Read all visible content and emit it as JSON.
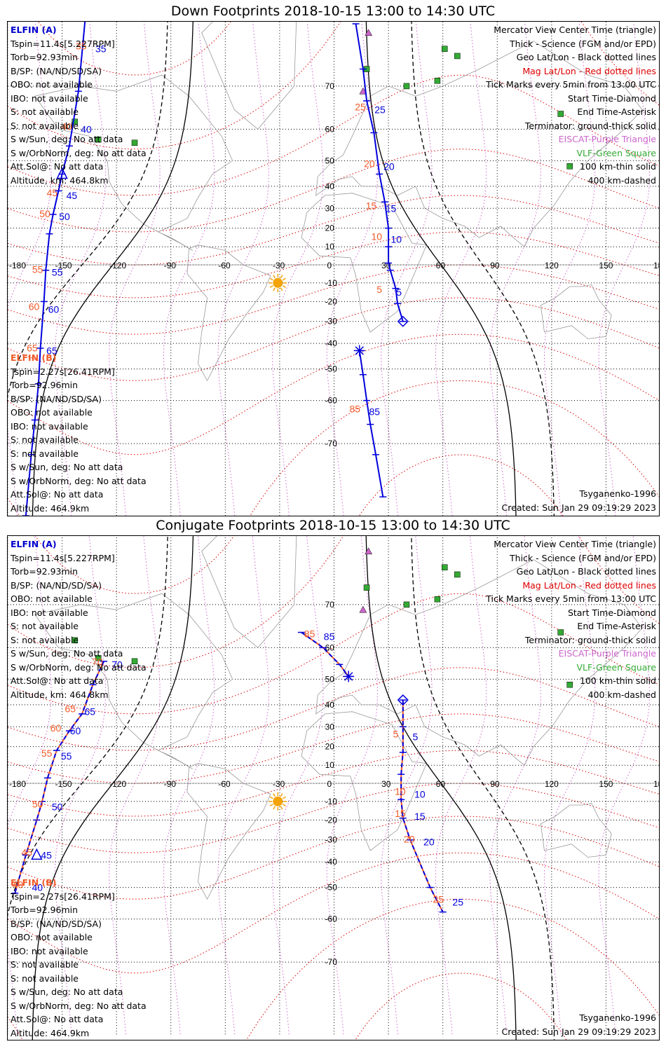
{
  "panels": [
    {
      "title": "Down Footprints 2018-10-15 13:00 to 14:30 UTC",
      "elfin_a": {
        "name": "ELFIN (A)",
        "lines": [
          "Tspin=11.4s[5.227RPM]",
          "Torb=92.93min",
          "B/SP: (NA/ND/SD/SA)",
          "OBO: not available",
          "IBO: not available",
          "S: not available",
          "S: not available",
          "S w/Sun, deg: No att data",
          "S w/OrbNorm, deg: No att data",
          "Att.Sol@: No att data",
          "Altitude, km: 464.8km"
        ]
      },
      "elfin_b": {
        "name": "ELFIN (B)",
        "lines": [
          "Tspin=2.27s[26.41RPM]",
          "Torb=92.96min",
          "B/SP: (NA/ND/SD/SA)",
          "OBO: not available",
          "IBO: not available",
          "S: not available",
          "S: not available",
          "S w/Sun, deg: No att data",
          "S w/OrbNorm, deg: No att data",
          "Att.Sol@: No att data",
          "Altitude: 464.9km"
        ]
      },
      "legend": [
        {
          "text": "Mercator View Center Time (triangle)",
          "color": "#000000"
        },
        {
          "text": "Thick - Science (FGM and/or EPD)",
          "color": "#000000"
        },
        {
          "text": "Geo Lat/Lon - Black dotted lines",
          "color": "#000000"
        },
        {
          "text": "Mag Lat/Lon - Red dotted lines",
          "color": "#dd0000"
        },
        {
          "text": "Tick Marks every 5min from 13:00 UTC",
          "color": "#000000"
        },
        {
          "text": "Start Time-Diamond",
          "color": "#000000"
        },
        {
          "text": "End Time-Asterisk",
          "color": "#000000"
        },
        {
          "text": "Terminator: ground-thick solid",
          "color": "#000000"
        },
        {
          "text": "EISCAT-Purple Triangle",
          "color": "#cc66cc"
        },
        {
          "text": "VLF-Green Square",
          "color": "#33aa33"
        },
        {
          "text": "100 km-thin solid",
          "color": "#000000"
        },
        {
          "text": "400 km-dashed",
          "color": "#000000"
        }
      ],
      "model": "Tsyganenko-1996",
      "created": "Created: Sun Jan 29 09:19:29 2023",
      "lon_labels": [
        "-180",
        "-150",
        "-120",
        "-90",
        "-60",
        "-30",
        "0",
        "30",
        "60",
        "90",
        "120",
        "150",
        "180"
      ],
      "lat_labels": [
        "70",
        "60",
        "50",
        "40",
        "30",
        "20",
        "10",
        "-10",
        "-20",
        "-30",
        "-40",
        "-50",
        "-60",
        "-70"
      ],
      "track_a": {
        "points": [
          [
            -137,
            80
          ],
          [
            -141,
            69
          ],
          [
            -146,
            55
          ],
          [
            -150,
            45
          ],
          [
            -152,
            38
          ],
          [
            -155,
            27
          ],
          [
            -157,
            17
          ],
          [
            -159,
            -3
          ],
          [
            -160,
            -20
          ],
          [
            -162,
            -42
          ],
          [
            -163,
            -55
          ],
          [
            -165,
            -65
          ],
          [
            -167,
            -72
          ],
          [
            -170,
            -80
          ]
        ],
        "labels": [
          {
            "t": "35",
            "lon": -134,
            "lat": 76
          },
          {
            "t": "40",
            "lon": -142,
            "lat": 60
          },
          {
            "t": "45",
            "lon": -150,
            "lat": 36
          },
          {
            "t": "50",
            "lon": -154,
            "lat": 26
          },
          {
            "t": "55",
            "lon": -158,
            "lat": -4
          },
          {
            "t": "60",
            "lon": -160,
            "lat": -24
          },
          {
            "t": "65",
            "lon": -161,
            "lat": -43
          }
        ]
      },
      "track_b": {
        "points": [
          [
            12,
            79
          ],
          [
            16,
            73
          ],
          [
            18,
            67
          ],
          [
            22,
            59
          ],
          [
            25,
            45
          ],
          [
            28,
            33
          ],
          [
            30,
            20
          ],
          [
            30,
            10
          ],
          [
            30,
            1
          ],
          [
            31,
            -3
          ],
          [
            34,
            -13
          ],
          [
            35,
            -21
          ],
          [
            38,
            -30
          ]
        ],
        "labels": [
          {
            "t": "25",
            "lon": 20,
            "lat": 65
          },
          {
            "t": "20",
            "lon": 25,
            "lat": 48
          },
          {
            "t": "15",
            "lon": 26,
            "lat": 30
          },
          {
            "t": "10",
            "lon": 29,
            "lat": 14
          },
          {
            "t": "5",
            "lon": 32,
            "lat": -15
          }
        ]
      },
      "track_c": {
        "points": [
          [
            14,
            -43
          ],
          [
            16,
            -52
          ],
          [
            18,
            -60
          ],
          [
            20,
            -66
          ],
          [
            23,
            -72
          ],
          [
            27,
            -78
          ]
        ],
        "labels": [
          {
            "t": "85",
            "lon": 17,
            "lat": -63
          }
        ]
      },
      "sun": {
        "lon": -31,
        "lat": -10
      }
    },
    {
      "title": "Conjugate Footprints 2018-10-15 13:00 to 14:30 UTC",
      "elfin_a": {
        "name": "ELFIN (A)",
        "lines": [
          "Tspin=11.4s[5.227RPM]",
          "Torb=92.93min",
          "B/SP: (NA/ND/SD/SA)",
          "OBO: not available",
          "IBO: not available",
          "S: not available",
          "S: not available",
          "S w/Sun, deg: No att data",
          "S w/OrbNorm, deg: No att data",
          "Att.Sol@: No att data",
          "Altitude, km: 464.8km"
        ]
      },
      "elfin_b": {
        "name": "ELFIN (B)",
        "lines": [
          "Tspin=2.27s[26.41RPM]",
          "Torb=92.96min",
          "B/SP: (NA/ND/SD/SA)",
          "OBO: not available",
          "IBO: not available",
          "S: not available",
          "S: not available",
          "S w/Sun, deg: No att data",
          "S w/OrbNorm, deg: No att data",
          "Att.Sol@: No att data",
          "Altitude: 464.9km"
        ]
      },
      "legend": [
        {
          "text": "Mercator View Center Time (triangle)",
          "color": "#000000"
        },
        {
          "text": "Thick - Science (FGM and/or EPD)",
          "color": "#000000"
        },
        {
          "text": "Geo Lat/Lon - Black dotted lines",
          "color": "#000000"
        },
        {
          "text": "Mag Lat/Lon - Red dotted lines",
          "color": "#dd0000"
        },
        {
          "text": "Tick Marks every 5min from 13:00 UTC",
          "color": "#000000"
        },
        {
          "text": "Start Time-Diamond",
          "color": "#000000"
        },
        {
          "text": "End Time-Asterisk",
          "color": "#000000"
        },
        {
          "text": "Terminator: ground-thick solid",
          "color": "#000000"
        },
        {
          "text": "EISCAT-Purple Triangle",
          "color": "#cc66cc"
        },
        {
          "text": "VLF-Green Square",
          "color": "#33aa33"
        },
        {
          "text": "100 km-thin solid",
          "color": "#000000"
        },
        {
          "text": "400 km-dashed",
          "color": "#000000"
        }
      ],
      "model": "Tsyganenko-1996",
      "created": "Created: Sun Jan 29 09:19:29 2023",
      "lon_labels": [
        "-180",
        "-150",
        "-120",
        "-90",
        "-60",
        "-30",
        "0",
        "30",
        "60",
        "90",
        "120",
        "150",
        "180"
      ],
      "lat_labels": [
        "70",
        "60",
        "50",
        "40",
        "30",
        "20",
        "10",
        "-10",
        "-20",
        "-30",
        "-40",
        "-50",
        "-60",
        "-70"
      ],
      "track_a": {
        "points": [
          [
            -127,
            56
          ],
          [
            -133,
            48
          ],
          [
            -139,
            36
          ],
          [
            -146,
            28
          ],
          [
            -153,
            18
          ],
          [
            -158,
            3
          ],
          [
            -161,
            -10
          ],
          [
            -164,
            -20
          ],
          [
            -170,
            -37
          ],
          [
            -176,
            -52
          ]
        ],
        "labels": [
          {
            "t": "70",
            "lon": -125,
            "lat": 55
          },
          {
            "t": "65",
            "lon": -140,
            "lat": 37
          },
          {
            "t": "60",
            "lon": -148,
            "lat": 28
          },
          {
            "t": "55",
            "lon": -153,
            "lat": 15
          },
          {
            "t": "50",
            "lon": -158,
            "lat": -13
          },
          {
            "t": "45",
            "lon": -164,
            "lat": -37
          },
          {
            "t": "40",
            "lon": -169,
            "lat": -50
          }
        ]
      },
      "track_b": {
        "points": [
          [
            38,
            42
          ],
          [
            38,
            30
          ],
          [
            38,
            17
          ],
          [
            37,
            5
          ],
          [
            37,
            -9
          ],
          [
            38,
            -19
          ],
          [
            42,
            -30
          ],
          [
            53,
            -50
          ],
          [
            60,
            -58
          ]
        ],
        "labels": [
          {
            "t": "5",
            "lon": 41,
            "lat": 25
          },
          {
            "t": "10",
            "lon": 42,
            "lat": -6
          },
          {
            "t": "15",
            "lon": 42,
            "lat": -18
          },
          {
            "t": "20",
            "lon": 47,
            "lat": -31
          },
          {
            "t": "25",
            "lon": 63,
            "lat": -55
          }
        ]
      },
      "track_c": {
        "points": [
          [
            -18,
            64
          ],
          [
            -6,
            60
          ],
          [
            3,
            55
          ],
          [
            8,
            51
          ]
        ],
        "labels": [
          {
            "t": "85",
            "lon": -8,
            "lat": 63
          }
        ]
      },
      "sun": {
        "lon": -31,
        "lat": -10
      }
    }
  ],
  "colors": {
    "track": "#0000dd",
    "track_label_orange": "#f05a28",
    "mag_grid": "#dd0000",
    "geo_grid": "#000000",
    "eiscat": "#cc66cc",
    "vlf": "#33aa33",
    "sun": "#f5a30a",
    "coast": "#999999"
  }
}
